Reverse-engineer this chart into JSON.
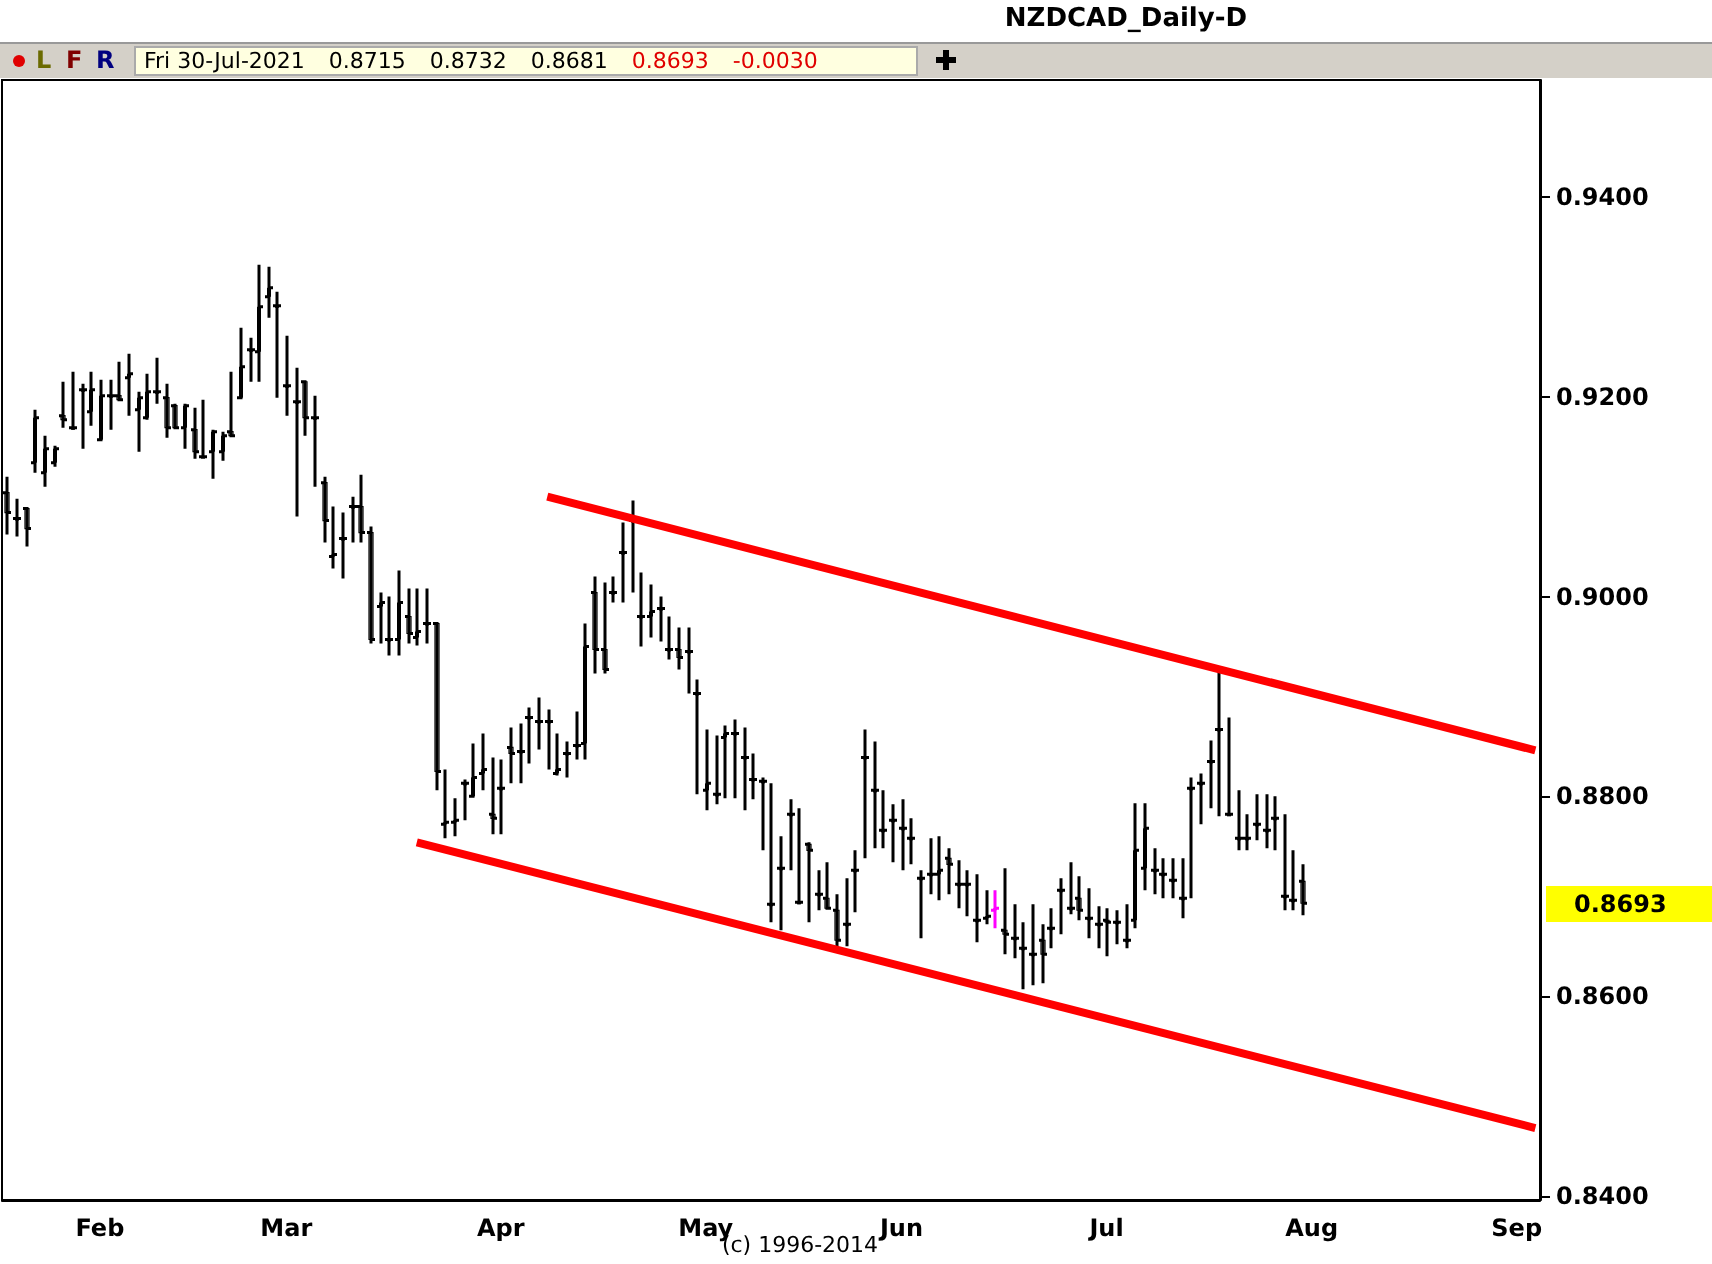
{
  "chart_data": {
    "type": "candlestick",
    "title": "NZDCAD_Daily-D",
    "annotations": [
      "L",
      "F",
      "R",
      "Fri 30-Jul-2021",
      "0.8715",
      "0.8732",
      "0.8681",
      "0.8693",
      "-0.0030",
      "(c) 1996-2014",
      "0.8693"
    ],
    "categories": [
      null,
      null,
      null,
      null,
      null,
      null,
      null,
      null,
      null,
      null,
      "Feb",
      null,
      null,
      null,
      null,
      null,
      null,
      null,
      null,
      null,
      null,
      null,
      null,
      null,
      null,
      null,
      null,
      null,
      null,
      null,
      "Mar",
      null,
      null,
      null,
      null,
      null,
      null,
      null,
      null,
      null,
      null,
      null,
      null,
      null,
      null,
      null,
      null,
      null,
      null,
      null,
      null,
      null,
      null,
      "Apr",
      null,
      null,
      null,
      null,
      null,
      null,
      null,
      null,
      null,
      null,
      null,
      null,
      null,
      null,
      null,
      null,
      null,
      null,
      null,
      null,
      null,
      "May",
      null,
      null,
      null,
      null,
      null,
      null,
      null,
      null,
      null,
      null,
      null,
      null,
      null,
      null,
      null,
      null,
      null,
      null,
      null,
      null,
      "Jun",
      null,
      null,
      null,
      null,
      null,
      null,
      null,
      null,
      null,
      null,
      null,
      null,
      null,
      null,
      null,
      null,
      null,
      null,
      null,
      null,
      null,
      "Jul",
      null,
      null,
      null,
      null,
      null,
      null,
      null,
      null,
      null,
      null,
      null,
      null,
      null,
      null,
      null,
      null,
      null,
      null,
      null,
      null,
      null,
      "Aug",
      null,
      null,
      null,
      null,
      null,
      null,
      null,
      null,
      null,
      null,
      null,
      null,
      null,
      null,
      null,
      null,
      null,
      null,
      null,
      null,
      null,
      "Sep",
      null,
      null
    ],
    "ohlc": [
      [
        0.9104,
        0.912,
        0.9062,
        0.9084
      ],
      [
        0.9078,
        0.9098,
        0.906,
        0.9078
      ],
      [
        0.9088,
        0.9088,
        0.905,
        0.9068
      ],
      [
        0.9134,
        0.9187,
        0.9124,
        0.9179
      ],
      [
        0.9124,
        0.9161,
        0.911,
        0.9148
      ],
      [
        0.9134,
        0.9151,
        0.913,
        0.9148
      ],
      [
        0.9181,
        0.9215,
        0.9169,
        0.9177
      ],
      [
        0.9169,
        0.9225,
        0.9167,
        0.9169
      ],
      [
        0.9207,
        0.9213,
        0.9148,
        0.9207
      ],
      [
        0.9185,
        0.9225,
        0.9171,
        0.9207
      ],
      [
        0.9157,
        0.9217,
        0.9157,
        0.9201
      ],
      [
        0.9201,
        0.9217,
        0.9167,
        0.9201
      ],
      [
        0.9201,
        0.9235,
        0.9197,
        0.9197
      ],
      [
        0.9219,
        0.9243,
        0.9181,
        0.9223
      ],
      [
        0.9187,
        0.9205,
        0.9145,
        0.9199
      ],
      [
        0.9179,
        0.9223,
        0.9177,
        0.9205
      ],
      [
        0.9205,
        0.9239,
        0.9193,
        0.9205
      ],
      [
        0.9199,
        0.9213,
        0.9159,
        0.9169
      ],
      [
        0.9191,
        0.9193,
        0.9169,
        0.9169
      ],
      [
        0.9169,
        0.9193,
        0.9148,
        0.9191
      ],
      [
        0.9167,
        0.9189,
        0.9138,
        0.9145
      ],
      [
        0.914,
        0.9197,
        0.914,
        0.914
      ],
      [
        0.9145,
        0.9167,
        0.9118,
        0.9165
      ],
      [
        0.9145,
        0.9165,
        0.9136,
        0.9161
      ],
      [
        0.9165,
        0.9225,
        0.9161,
        0.9161
      ],
      [
        0.9199,
        0.9269,
        0.9199,
        0.923
      ],
      [
        0.9247,
        0.9259,
        0.9215,
        0.9247
      ],
      [
        0.9245,
        0.9332,
        0.9215,
        0.929
      ],
      [
        0.93,
        0.933,
        0.9279,
        0.9309
      ],
      [
        0.9291,
        0.9305,
        0.9199,
        0.9291
      ],
      [
        0.9211,
        0.9261,
        0.9181,
        0.9211
      ],
      [
        0.9195,
        0.9229,
        0.908,
        0.9195
      ],
      [
        0.9215,
        0.9215,
        0.9161,
        0.9179
      ],
      [
        0.9179,
        0.9201,
        0.911,
        0.9179
      ],
      [
        0.9114,
        0.912,
        0.9054,
        0.9076
      ],
      [
        0.904,
        0.909,
        0.9028,
        0.9042
      ],
      [
        0.9058,
        0.9084,
        0.9018,
        0.9058
      ],
      [
        0.909,
        0.91,
        0.9054,
        0.909
      ],
      [
        0.909,
        0.9122,
        0.9054,
        0.9064
      ],
      [
        0.9064,
        0.907,
        0.8953,
        0.8957
      ],
      [
        0.899,
        0.9004,
        0.8953,
        0.8994
      ],
      [
        0.8957,
        0.9,
        0.8941,
        0.8957
      ],
      [
        0.8957,
        0.9026,
        0.8941,
        0.8994
      ],
      [
        0.898,
        0.9008,
        0.8953,
        0.8963
      ],
      [
        0.8959,
        0.9008,
        0.8951,
        0.8965
      ],
      [
        0.8973,
        0.9008,
        0.8953,
        0.8973
      ],
      [
        0.8973,
        0.8973,
        0.8806,
        0.8825
      ],
      [
        0.8772,
        0.8827,
        0.8758,
        0.8774
      ],
      [
        0.8774,
        0.8798,
        0.876,
        0.8776
      ],
      [
        0.8813,
        0.8817,
        0.8776,
        0.8813
      ],
      [
        0.88,
        0.8853,
        0.88,
        0.8819
      ],
      [
        0.8823,
        0.8863,
        0.8806,
        0.8827
      ],
      [
        0.8782,
        0.8839,
        0.8762,
        0.8778
      ],
      [
        0.8808,
        0.8837,
        0.8762,
        0.8808
      ],
      [
        0.8849,
        0.8869,
        0.8813,
        0.8843
      ],
      [
        0.8845,
        0.8873,
        0.8813,
        0.8845
      ],
      [
        0.8879,
        0.8889,
        0.8833,
        0.8879
      ],
      [
        0.8875,
        0.8899,
        0.8847,
        0.8875
      ],
      [
        0.8875,
        0.8887,
        0.8827,
        0.8875
      ],
      [
        0.8823,
        0.8863,
        0.8821,
        0.8827
      ],
      [
        0.8843,
        0.8855,
        0.8819,
        0.8843
      ],
      [
        0.8851,
        0.8885,
        0.8837,
        0.8851
      ],
      [
        0.8853,
        0.8973,
        0.8837,
        0.895
      ],
      [
        0.9004,
        0.902,
        0.8923,
        0.8947
      ],
      [
        0.8947,
        0.9014,
        0.8923,
        0.8927
      ],
      [
        0.9004,
        0.902,
        0.8994,
        0.9004
      ],
      [
        0.9044,
        0.9074,
        0.8994,
        0.9044
      ],
      [
        0.9076,
        0.9096,
        0.9004,
        0.9076
      ],
      [
        0.898,
        0.9024,
        0.895,
        0.898
      ],
      [
        0.898,
        0.9012,
        0.8959,
        0.8985
      ],
      [
        0.8988,
        0.9,
        0.8955,
        0.8988
      ],
      [
        0.8947,
        0.898,
        0.8937,
        0.8947
      ],
      [
        0.8947,
        0.8969,
        0.8927,
        0.8939
      ],
      [
        0.8945,
        0.8969,
        0.8903,
        0.8945
      ],
      [
        0.8903,
        0.8917,
        0.8802,
        0.8903
      ],
      [
        0.8806,
        0.8867,
        0.8786,
        0.8813
      ],
      [
        0.8802,
        0.8861,
        0.8792,
        0.8802
      ],
      [
        0.8859,
        0.8871,
        0.8798,
        0.8863
      ],
      [
        0.8863,
        0.8877,
        0.8798,
        0.8863
      ],
      [
        0.8839,
        0.8869,
        0.8786,
        0.8839
      ],
      [
        0.8817,
        0.8843,
        0.8797,
        0.8817
      ],
      [
        0.8815,
        0.8819,
        0.8746,
        0.8815
      ],
      [
        0.8692,
        0.8813,
        0.8674,
        0.8692
      ],
      [
        0.8728,
        0.876,
        0.8666,
        0.8728
      ],
      [
        0.8782,
        0.8797,
        0.8726,
        0.8782
      ],
      [
        0.8694,
        0.8788,
        0.8692,
        0.8694
      ],
      [
        0.8752,
        0.8754,
        0.8674,
        0.8746
      ],
      [
        0.8702,
        0.8726,
        0.8686,
        0.8702
      ],
      [
        0.8698,
        0.8734,
        0.8688,
        0.8688
      ],
      [
        0.8686,
        0.8702,
        0.8648,
        0.8656
      ],
      [
        0.8672,
        0.8718,
        0.865,
        0.8672
      ],
      [
        0.8726,
        0.8746,
        0.8684,
        0.8726
      ],
      [
        0.8839,
        0.8867,
        0.8738,
        0.8839
      ],
      [
        0.8806,
        0.8855,
        0.8748,
        0.8806
      ],
      [
        0.8766,
        0.8806,
        0.8748,
        0.8766
      ],
      [
        0.8776,
        0.8792,
        0.8734,
        0.8776
      ],
      [
        0.8768,
        0.8797,
        0.8726,
        0.8768
      ],
      [
        0.8758,
        0.8778,
        0.8732,
        0.8758
      ],
      [
        0.8718,
        0.8726,
        0.8658,
        0.8718
      ],
      [
        0.8722,
        0.8758,
        0.8702,
        0.8722
      ],
      [
        0.8722,
        0.876,
        0.8696,
        0.8726
      ],
      [
        0.8738,
        0.8748,
        0.8702,
        0.8732
      ],
      [
        0.8712,
        0.8736,
        0.8688,
        0.8712
      ],
      [
        0.8712,
        0.8726,
        0.868,
        0.8712
      ],
      [
        0.8676,
        0.8722,
        0.8654,
        0.8676
      ],
      [
        0.8678,
        0.8706,
        0.8672,
        0.868
      ],
      [
        0.8686,
        0.8706,
        0.8668,
        0.8688
      ],
      [
        0.8666,
        0.8728,
        0.8642,
        0.8662
      ],
      [
        0.8658,
        0.8692,
        0.8638,
        0.8658
      ],
      [
        0.8648,
        0.8674,
        0.8607,
        0.8648
      ],
      [
        0.8642,
        0.8692,
        0.8611,
        0.8642
      ],
      [
        0.8656,
        0.8672,
        0.8613,
        0.8642
      ],
      [
        0.8668,
        0.8688,
        0.8648,
        0.8668
      ],
      [
        0.8706,
        0.8718,
        0.8662,
        0.8706
      ],
      [
        0.8688,
        0.8734,
        0.8682,
        0.8688
      ],
      [
        0.8698,
        0.872,
        0.8676,
        0.8686
      ],
      [
        0.8678,
        0.8708,
        0.8658,
        0.8678
      ],
      [
        0.8672,
        0.869,
        0.8648,
        0.8672
      ],
      [
        0.8676,
        0.8688,
        0.864,
        0.8674
      ],
      [
        0.8674,
        0.8686,
        0.8652,
        0.8674
      ],
      [
        0.8656,
        0.8692,
        0.8648,
        0.8656
      ],
      [
        0.8676,
        0.8793,
        0.8668,
        0.8746
      ],
      [
        0.8728,
        0.8793,
        0.8706,
        0.8768
      ],
      [
        0.8726,
        0.8748,
        0.8702,
        0.8726
      ],
      [
        0.8722,
        0.8738,
        0.8698,
        0.8722
      ],
      [
        0.8716,
        0.8738,
        0.8698,
        0.8716
      ],
      [
        0.8698,
        0.8738,
        0.8678,
        0.8698
      ],
      [
        0.8808,
        0.8819,
        0.8698,
        0.8808
      ],
      [
        0.8813,
        0.8823,
        0.8772,
        0.8813
      ],
      [
        0.8835,
        0.8856,
        0.8788,
        0.8835
      ],
      [
        0.8867,
        0.8925,
        0.878,
        0.8867
      ],
      [
        0.8782,
        0.8879,
        0.8782,
        0.8782
      ],
      [
        0.8758,
        0.8806,
        0.8746,
        0.8758
      ],
      [
        0.8758,
        0.8782,
        0.8746,
        0.8758
      ],
      [
        0.8772,
        0.8802,
        0.8756,
        0.8772
      ],
      [
        0.8766,
        0.8802,
        0.8748,
        0.8766
      ],
      [
        0.8778,
        0.88,
        0.8746,
        0.8778
      ],
      [
        0.87,
        0.8782,
        0.8686,
        0.87
      ],
      [
        0.8696,
        0.8746,
        0.8686,
        0.8696
      ],
      [
        0.8715,
        0.8732,
        0.8681,
        0.8693
      ],
      null,
      null,
      null,
      null,
      null,
      null,
      null,
      null,
      null,
      null,
      null,
      null,
      null,
      null,
      null,
      null,
      null,
      null,
      null,
      null,
      null,
      null,
      null,
      null,
      null
    ],
    "colors": [
      "#000000",
      "#000000",
      "#000000",
      "#000000",
      "#000000",
      "#000000",
      "#000000",
      "#000000",
      "#000000",
      "#000000",
      "#000000",
      "#000000",
      "#000000",
      "#000000",
      "#000000",
      "#000000",
      "#000000",
      "#000000",
      "#000000",
      "#000000",
      "#000000",
      "#000000",
      "#000000",
      "#000000",
      "#000000",
      "#000000",
      "#000000",
      "#000000",
      "#000000",
      "#000000",
      "#000000",
      "#000000",
      "#000000",
      "#000000",
      "#000000",
      "#000000",
      "#000000",
      "#000000",
      "#000000",
      "#000000",
      "#000000",
      "#000000",
      "#000000",
      "#000000",
      "#000000",
      "#000000",
      "#000000",
      "#000000",
      "#000000",
      "#000000",
      "#000000",
      "#000000",
      "#000000",
      "#000000",
      "#000000",
      "#000000",
      "#000000",
      "#000000",
      "#000000",
      "#000000",
      "#000000",
      "#000000",
      "#000000",
      "#000000",
      "#000000",
      "#000000",
      "#000000",
      "#000000",
      "#000000",
      "#000000",
      "#000000",
      "#000000",
      "#000000",
      "#000000",
      "#000000",
      "#000000",
      "#000000",
      "#000000",
      "#000000",
      "#000000",
      "#000000",
      "#000000",
      "#000000",
      "#000000",
      "#000000",
      "#000000",
      "#000000",
      "#000000",
      "#000000",
      "#000000",
      "#000000",
      "#000000",
      "#000000",
      "#000000",
      "#000000",
      "#000000",
      "#000000",
      "#000000",
      "#000000",
      "#000000",
      "#000000",
      "#000000",
      "#000000",
      "#000000",
      "#000000",
      "#000000",
      "#ff00ff",
      "#000000",
      "#000000",
      "#000000",
      "#000000",
      "#000000",
      "#000000",
      "#000000",
      "#000000",
      "#000000",
      "#000000",
      "#000000",
      "#000000",
      "#000000",
      "#000000",
      "#000000",
      "#000000",
      "#000000",
      "#000000",
      "#000000",
      "#000000",
      "#000000",
      "#000000",
      "#000000",
      "#000000",
      "#000000",
      "#000000",
      "#000000",
      "#000000",
      "#000000",
      "#000000",
      "#000000",
      "#000000",
      "#000000",
      null,
      null,
      null,
      null,
      null,
      null,
      null,
      null,
      null,
      null,
      null,
      null,
      null,
      null,
      null,
      null,
      null,
      null,
      null,
      null,
      null,
      null,
      null,
      null,
      null
    ],
    "series": [
      {
        "type": "line",
        "color": "#ff0000",
        "marker": "none",
        "values": [
          null,
          null,
          null,
          null,
          null,
          null,
          null,
          null,
          null,
          null,
          null,
          null,
          null,
          null,
          null,
          null,
          null,
          null,
          null,
          null,
          null,
          null,
          null,
          null,
          null,
          null,
          null,
          null,
          null,
          null,
          null,
          null,
          null,
          null,
          null,
          null,
          null,
          null,
          null,
          null,
          null,
          null,
          null,
          null,
          null,
          null,
          null,
          null,
          null,
          null,
          null,
          null,
          null,
          null,
          null,
          null,
          null,
          null,
          0.91,
          null,
          null,
          null,
          null,
          null,
          null,
          null,
          null,
          null,
          null,
          null,
          null,
          null,
          null,
          null,
          null,
          null,
          null,
          null,
          null,
          null,
          null,
          null,
          null,
          null,
          null,
          null,
          null,
          null,
          null,
          null,
          null,
          null,
          null,
          null,
          null,
          null,
          null,
          null,
          null,
          null,
          null,
          null,
          null,
          null,
          null,
          null,
          null,
          null,
          null,
          null,
          null,
          null,
          null,
          null,
          null,
          null,
          null,
          null,
          null,
          null,
          null,
          null,
          null,
          null,
          null,
          null,
          null,
          null,
          null,
          null,
          null,
          null,
          null,
          null,
          null,
          null,
          null,
          null,
          null,
          null,
          null,
          null,
          null,
          null,
          null,
          null,
          null,
          null,
          null,
          null,
          null,
          null,
          null,
          null,
          null,
          null,
          null,
          null,
          null,
          null,
          null,
          null,
          null,
          null,
          0.8846
        ]
      },
      {
        "type": "line",
        "color": "#ff0000",
        "marker": "none",
        "values": [
          null,
          null,
          null,
          null,
          null,
          null,
          null,
          null,
          null,
          null,
          null,
          null,
          null,
          null,
          null,
          null,
          null,
          null,
          null,
          null,
          null,
          null,
          null,
          null,
          null,
          null,
          null,
          null,
          null,
          null,
          null,
          null,
          null,
          null,
          null,
          null,
          null,
          null,
          null,
          null,
          null,
          null,
          null,
          null,
          0.8754,
          null,
          null,
          null,
          null,
          null,
          null,
          null,
          null,
          null,
          null,
          null,
          null,
          null,
          null,
          null,
          null,
          null,
          null,
          null,
          null,
          null,
          null,
          null,
          null,
          null,
          null,
          null,
          null,
          null,
          null,
          null,
          null,
          null,
          null,
          null,
          null,
          null,
          null,
          null,
          null,
          null,
          null,
          null,
          null,
          null,
          null,
          null,
          null,
          null,
          null,
          null,
          null,
          null,
          null,
          null,
          null,
          null,
          null,
          null,
          null,
          null,
          null,
          null,
          null,
          null,
          null,
          null,
          null,
          null,
          null,
          null,
          null,
          null,
          null,
          null,
          null,
          null,
          null,
          null,
          null,
          null,
          null,
          null,
          null,
          null,
          null,
          null,
          null,
          null,
          null,
          null,
          null,
          null,
          null,
          null,
          null,
          null,
          null,
          null,
          null,
          null,
          null,
          null,
          null,
          null,
          null,
          null,
          null,
          null,
          null,
          null,
          null,
          null,
          null,
          null,
          null,
          null,
          null,
          null,
          0.8468
        ]
      }
    ],
    "ylim": [
      0.8396,
      0.9517
    ],
    "yticks": [
      {
        "value": 0.84,
        "label": "0.8400"
      },
      {
        "value": 0.86,
        "label": "0.8600"
      },
      {
        "value": 0.88,
        "label": "0.8800"
      },
      {
        "value": 0.9,
        "label": "0.9000"
      },
      {
        "value": 0.92,
        "label": "0.9200"
      },
      {
        "value": 0.94,
        "label": "0.9400"
      }
    ]
  }
}
